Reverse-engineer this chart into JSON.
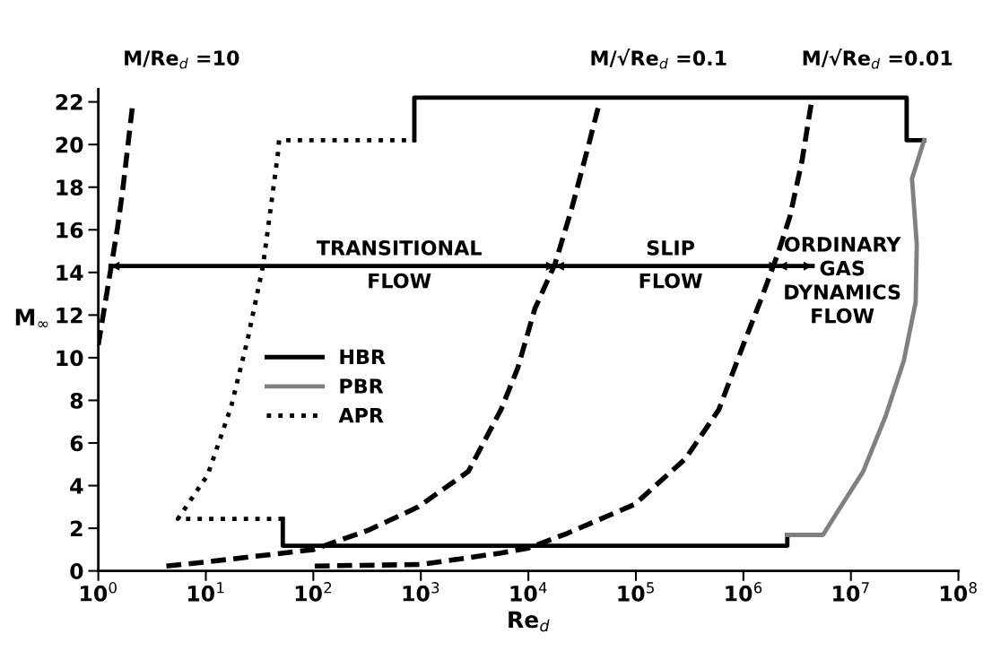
{
  "chart_data": {
    "type": "line",
    "xlabel": "Re$_{d}$",
    "ylabel": "M$_{∞}$",
    "log": "x",
    "xlim": [
      1,
      100000000
    ],
    "ylim": [
      0,
      22.6
    ],
    "xticks": [
      {
        "value": 1,
        "label": "10$^{0}$"
      },
      {
        "value": 10,
        "label": "10$^{1}$"
      },
      {
        "value": 100,
        "label": "10$^{2}$"
      },
      {
        "value": 1000,
        "label": "10$^{3}$"
      },
      {
        "value": 10000,
        "label": "10$^{4}$"
      },
      {
        "value": 100000,
        "label": "10$^{5}$"
      },
      {
        "value": 1000000,
        "label": "10$^{6}$"
      },
      {
        "value": 10000000,
        "label": "10$^{7}$"
      },
      {
        "value": 100000000,
        "label": "10$^{8}$"
      }
    ],
    "yticks": [
      0,
      2,
      4,
      6,
      8,
      10,
      12,
      14,
      16,
      18,
      20,
      22
    ],
    "grid": false,
    "legend": "left",
    "series": [
      {
        "name": "HBR",
        "color": "#000000",
        "line_style": "solid",
        "x": [
          52,
          52,
          2560000,
          2560000,
          null,
          870,
          870,
          33000000,
          33000000,
          48000000
        ],
        "values": [
          2.44,
          1.18,
          1.18,
          1.69,
          null,
          20.2,
          22.2,
          22.2,
          20.2,
          20.2
        ]
      },
      {
        "name": "PBR",
        "color": "#808080",
        "line_style": "solid",
        "x": [
          2560000,
          3300000,
          5500000,
          7300000,
          13000000,
          21000000,
          31000000,
          40000000,
          41000000,
          37000000,
          48000000
        ],
        "values": [
          1.69,
          1.69,
          1.69,
          2.68,
          4.66,
          7.25,
          9.85,
          12.6,
          15.3,
          18.4,
          20.2
        ]
      },
      {
        "name": "APR",
        "color": "#000000",
        "line_style": "dotted",
        "x": [
          52,
          5.5,
          10.4,
          17.2,
          24.6,
          34,
          40.6,
          46.9,
          48,
          870
        ],
        "values": [
          2.44,
          2.44,
          4.5,
          7.7,
          10.9,
          14.3,
          17.2,
          19.6,
          20.2,
          20.2
        ]
      },
      {
        "color": "#000000",
        "line_style": "dashed",
        "x": [
          1,
          1.31,
          1.51,
          1.69,
          1.88,
          2.1,
          null,
          4.3,
          9.7,
          100,
          322,
          944,
          2760,
          5560,
          8000,
          11500,
          17700,
          25000,
          36000,
          46000,
          null,
          103,
          1000,
          5560,
          10000,
          23000,
          98000,
          290000,
          590000,
          980000,
          1500000,
          2100000,
          2700000,
          3500000,
          4300000
        ],
        "values": [
          10.6,
          14.2,
          16.1,
          17.9,
          19.9,
          22,
          null,
          0.23,
          0.41,
          1.0,
          1.9,
          3.0,
          4.66,
          7.56,
          9.54,
          12.3,
          14.4,
          16.9,
          19.9,
          22,
          null,
          0.23,
          0.3,
          0.84,
          1.07,
          1.76,
          3.13,
          5.27,
          7.56,
          10.5,
          12.9,
          14.9,
          16.6,
          19.2,
          22
        ]
      },
      {
        "color": "#000000",
        "line_style": "solid",
        "x": [
          1.3,
          17700,
          2100000,
          4400000
        ],
        "values": [
          14.3,
          14.3,
          14.3,
          14.3
        ]
      }
    ],
    "annotations": [
      {
        "text": "M/Re$_{d}$ =10",
        "x": 2.1,
        "y": 22
      },
      {
        "text": "M/√Re$_{d}$ =0.1",
        "x": 46000,
        "y": 22
      },
      {
        "text": "M/√Re$_{d}$ =0.01",
        "x": 4300000,
        "y": 22
      },
      {
        "text": "TRANSITIONAL\nFLOW",
        "x": 630,
        "y": 14.3
      },
      {
        "text": "SLIP\nFLOW",
        "x": 210000,
        "y": 14.3
      },
      "ORDINARY\nGAS\nDYNAMICS\nFLOW"
    ]
  }
}
